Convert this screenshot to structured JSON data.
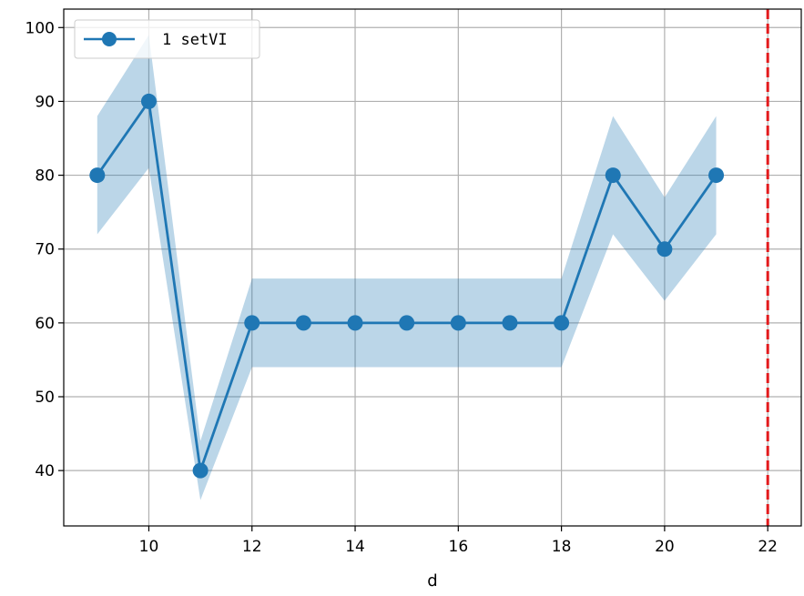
{
  "chart_data": {
    "type": "line",
    "title": "",
    "xlabel": "d",
    "ylabel": "",
    "xlim": [
      8.35,
      22.65
    ],
    "ylim": [
      32.5,
      102.5
    ],
    "xticks": [
      10,
      12,
      14,
      16,
      18,
      20,
      22
    ],
    "yticks": [
      40,
      50,
      60,
      70,
      80,
      90,
      100
    ],
    "grid": true,
    "legend_position": "top-left",
    "series": [
      {
        "name": "1 setVI",
        "color": "#1f77b4",
        "band_color": "#1f77b4",
        "x": [
          9,
          10,
          11,
          12,
          13,
          14,
          15,
          16,
          17,
          18,
          19,
          20,
          21
        ],
        "y": [
          80,
          90,
          40,
          60,
          60,
          60,
          60,
          60,
          60,
          60,
          80,
          70,
          80
        ],
        "lower": [
          72,
          81,
          36,
          54,
          54,
          54,
          54,
          54,
          54,
          54,
          72,
          63,
          72
        ],
        "upper": [
          88,
          99,
          44,
          66,
          66,
          66,
          66,
          66,
          66,
          66,
          88,
          77,
          88
        ]
      }
    ],
    "reference_line": {
      "x": 22,
      "color": "#e31a1c",
      "style": "dashed"
    }
  }
}
